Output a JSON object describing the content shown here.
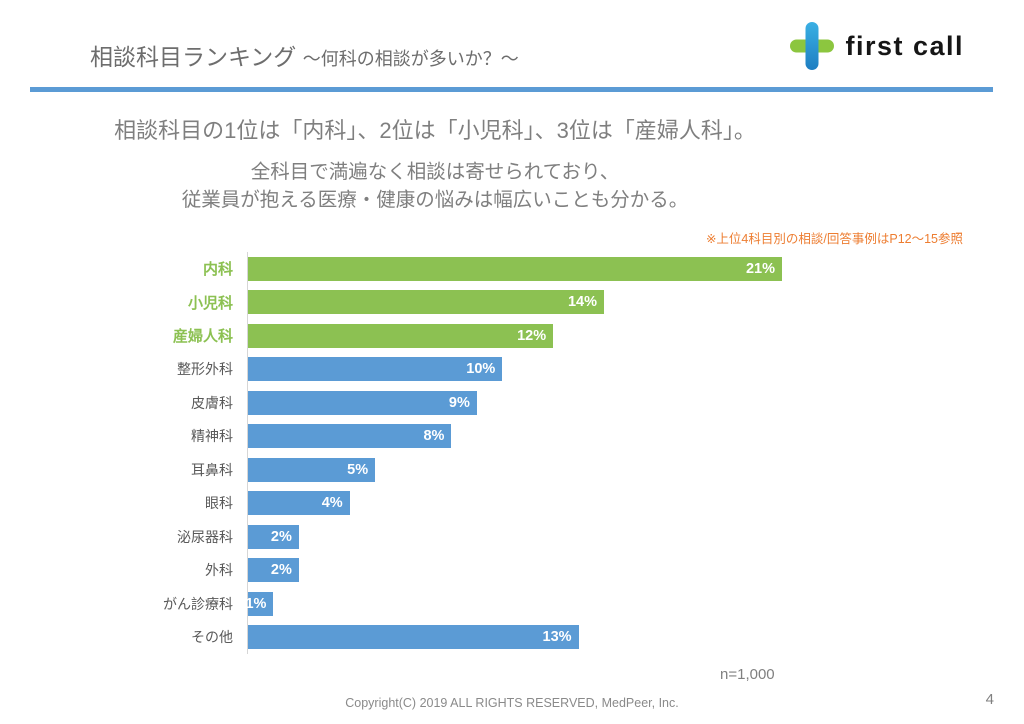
{
  "header": {
    "title": "相談科目ランキング",
    "subtitle": "～何科の相談が多いか？～",
    "logo_text": "first call"
  },
  "summary": {
    "line1": "相談科目の1位は「内科」、2位は「小児科」、3位は「産婦人科」。",
    "line2": "全科目で満遍なく相談は寄せられており、",
    "line3": "従業員が抱える医療・健康の悩みは幅広いことも分かる。",
    "note": "※上位4科目別の相談/回答事例はP12～15参照"
  },
  "chart_data": {
    "type": "bar",
    "orientation": "horizontal",
    "title": "相談科目ランキング ～何科の相談が多いか？～",
    "categories": [
      "内科",
      "小児科",
      "産婦人科",
      "整形外科",
      "皮膚科",
      "精神科",
      "耳鼻科",
      "眼科",
      "泌尿器科",
      "外科",
      "がん診療科",
      "その他"
    ],
    "values": [
      21,
      14,
      12,
      10,
      9,
      8,
      5,
      4,
      2,
      2,
      1,
      13
    ],
    "value_suffix": "%",
    "highlight_top_n": 3,
    "colors": {
      "highlight_bar": "#8CC152",
      "default_bar": "#5B9BD5"
    },
    "xlim": [
      0,
      21
    ],
    "grid": false,
    "legend": false,
    "sample_size": "n=1,000"
  },
  "footer": {
    "copyright": "Copyright(C) 2019 ALL RIGHTS RESERVED, MedPeer, Inc.",
    "page_number": "4"
  },
  "theme": {
    "divider_color": "#5B9BD5",
    "note_color": "#ED7D31",
    "logo_blue": "#2BA3DC",
    "logo_green": "#8CC63F"
  }
}
